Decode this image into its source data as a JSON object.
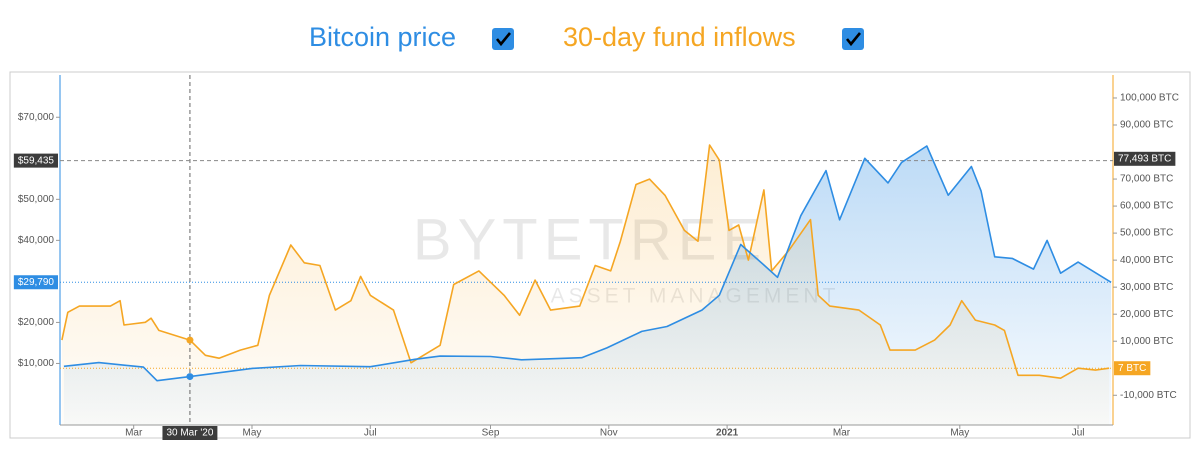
{
  "chart_data": {
    "type": "area",
    "watermark": [
      "BYTETREE",
      "ASSET MANAGEMENT"
    ],
    "xlim": [
      "2020-01-23",
      "2021-07-19"
    ],
    "xticks": [
      {
        "value": "2020-03-01",
        "label": "Mar"
      },
      {
        "value": "2020-05-01",
        "label": "May"
      },
      {
        "value": "2020-07-01",
        "label": "Jul"
      },
      {
        "value": "2020-09-01",
        "label": "Sep"
      },
      {
        "value": "2020-11-01",
        "label": "Nov"
      },
      {
        "value": "2021-01-01",
        "label": "2021"
      },
      {
        "value": "2021-03-01",
        "label": "Mar"
      },
      {
        "value": "2021-05-01",
        "label": "May"
      },
      {
        "value": "2021-07-01",
        "label": "Jul"
      }
    ],
    "ylim": [
      -5000,
      80300
    ],
    "yticks": [
      {
        "value": 10000,
        "label": "$10,000"
      },
      {
        "value": 20000,
        "label": "$20,000"
      },
      {
        "value": 40000,
        "label": "$40,000"
      },
      {
        "value": 50000,
        "label": "$50,000"
      },
      {
        "value": 70000,
        "label": "$70,000"
      }
    ],
    "y2lim": [
      -21000,
      108500
    ],
    "y2ticks": [
      {
        "value": -10000,
        "label": "-10,000 BTC"
      },
      {
        "value": 10000,
        "label": "10,000 BTC"
      },
      {
        "value": 20000,
        "label": "20,000 BTC"
      },
      {
        "value": 30000,
        "label": "30,000 BTC"
      },
      {
        "value": 40000,
        "label": "40,000 BTC"
      },
      {
        "value": 50000,
        "label": "50,000 BTC"
      },
      {
        "value": 60000,
        "label": "60,000 BTC"
      },
      {
        "value": 70000,
        "label": "70,000 BTC"
      },
      {
        "value": 90000,
        "label": "90,000 BTC"
      },
      {
        "value": 100000,
        "label": "100,000 BTC"
      }
    ],
    "crosshair": {
      "x": {
        "value": "2020-03-30",
        "label": "30 Mar '20"
      },
      "y": {
        "value": 59435,
        "label": "$59,435"
      },
      "y2": {
        "value": 77493,
        "label": "77,493 BTC"
      }
    },
    "series": [
      {
        "name": "Bitcoin price",
        "color": "#2e8de3",
        "axis": "y",
        "end_label": {
          "value": 29790,
          "label": "$29,790"
        },
        "x": [
          "2020-01-25",
          "2020-02-12",
          "2020-03-06",
          "2020-03-13",
          "2020-03-30",
          "2020-05-01",
          "2020-05-26",
          "2020-07-01",
          "2020-07-24",
          "2020-08-06",
          "2020-09-01",
          "2020-09-17",
          "2020-10-18",
          "2020-10-31",
          "2020-11-18",
          "2020-12-01",
          "2020-12-19",
          "2020-12-28",
          "2021-01-08",
          "2021-01-20",
          "2021-01-27",
          "2021-02-08",
          "2021-02-21",
          "2021-02-28",
          "2021-03-13",
          "2021-03-25",
          "2021-04-01",
          "2021-04-14",
          "2021-04-25",
          "2021-05-07",
          "2021-05-12",
          "2021-05-19",
          "2021-05-28",
          "2021-06-08",
          "2021-06-15",
          "2021-06-22",
          "2021-07-01",
          "2021-07-18"
        ],
        "values": [
          9300,
          10200,
          9100,
          5800,
          6800,
          8800,
          9500,
          9200,
          11000,
          11800,
          11700,
          10900,
          11400,
          13800,
          17800,
          19000,
          23000,
          26600,
          39000,
          34000,
          31000,
          46000,
          57000,
          45000,
          60000,
          54000,
          59000,
          63000,
          51000,
          58000,
          52000,
          36000,
          35600,
          33000,
          40000,
          32000,
          34700,
          29790
        ]
      },
      {
        "name": "30-day fund inflows",
        "color": "#f5a623",
        "axis": "y2",
        "end_label": {
          "value": 7,
          "label": "7 BTC"
        },
        "x": [
          "2020-01-24",
          "2020-01-27",
          "2020-02-02",
          "2020-02-18",
          "2020-02-23",
          "2020-02-25",
          "2020-03-07",
          "2020-03-10",
          "2020-03-14",
          "2020-03-30",
          "2020-04-07",
          "2020-04-14",
          "2020-04-25",
          "2020-05-04",
          "2020-05-10",
          "2020-05-21",
          "2020-05-28",
          "2020-06-05",
          "2020-06-13",
          "2020-06-21",
          "2020-06-26",
          "2020-07-01",
          "2020-07-13",
          "2020-07-22",
          "2020-08-06",
          "2020-08-13",
          "2020-08-26",
          "2020-09-08",
          "2020-09-16",
          "2020-09-24",
          "2020-10-02",
          "2020-10-17",
          "2020-10-25",
          "2020-11-02",
          "2020-11-07",
          "2020-11-15",
          "2020-11-22",
          "2020-11-30",
          "2020-12-10",
          "2020-12-17",
          "2020-12-23",
          "2020-12-28",
          "2021-01-02",
          "2021-01-07",
          "2021-01-12",
          "2021-01-20",
          "2021-01-24",
          "2021-02-02",
          "2021-02-13",
          "2021-02-17",
          "2021-02-23",
          "2021-03-10",
          "2021-03-21",
          "2021-03-26",
          "2021-04-08",
          "2021-04-18",
          "2021-04-26",
          "2021-05-02",
          "2021-05-09",
          "2021-05-19",
          "2021-05-24",
          "2021-05-31",
          "2021-06-11",
          "2021-06-22",
          "2021-07-01",
          "2021-07-10",
          "2021-07-17"
        ],
        "values": [
          10400,
          20700,
          23000,
          23000,
          25000,
          16000,
          17000,
          18500,
          14000,
          10400,
          4800,
          3700,
          6700,
          8500,
          27000,
          45600,
          39000,
          38000,
          21500,
          25000,
          34000,
          27000,
          21500,
          2000,
          8500,
          31000,
          36000,
          27000,
          19600,
          32600,
          21500,
          23000,
          38000,
          36000,
          47000,
          68000,
          70000,
          64000,
          51000,
          47000,
          82600,
          77000,
          51000,
          53000,
          40000,
          66000,
          36000,
          43700,
          55000,
          27000,
          23000,
          21500,
          16000,
          6700,
          6700,
          10400,
          16000,
          25000,
          17800,
          16000,
          14000,
          -2600,
          -2600,
          -3700,
          0,
          -700,
          7
        ]
      }
    ]
  }
}
